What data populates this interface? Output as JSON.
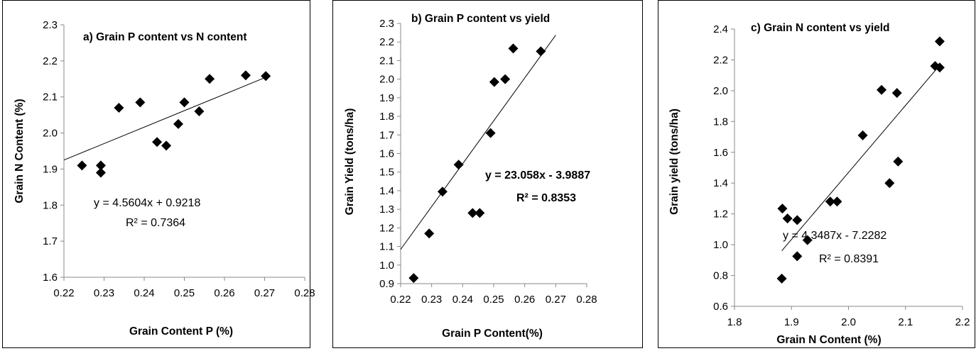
{
  "chart_data": [
    {
      "type": "scatter",
      "title": "a) Grain P content  vs N content",
      "xlabel": "Grain Content P (%)",
      "ylabel": "Grain N  Content (%)",
      "xlim": [
        0.22,
        0.28
      ],
      "ylim": [
        1.6,
        2.3
      ],
      "xticks": [
        "0.22",
        "0.23",
        "0.24",
        "0.25",
        "0.26",
        "0.27",
        "0.28"
      ],
      "yticks": [
        "1.6",
        "1.7",
        "1.8",
        "1.9",
        "2.0",
        "2.1",
        "2.2",
        "2.3"
      ],
      "points": [
        {
          "x": 0.2245,
          "y": 1.91
        },
        {
          "x": 0.2292,
          "y": 1.91
        },
        {
          "x": 0.2292,
          "y": 1.89
        },
        {
          "x": 0.2337,
          "y": 2.07
        },
        {
          "x": 0.239,
          "y": 2.085
        },
        {
          "x": 0.2432,
          "y": 1.975
        },
        {
          "x": 0.2455,
          "y": 1.965
        },
        {
          "x": 0.2485,
          "y": 2.025
        },
        {
          "x": 0.25,
          "y": 2.085
        },
        {
          "x": 0.2537,
          "y": 2.06
        },
        {
          "x": 0.2563,
          "y": 2.15
        },
        {
          "x": 0.2653,
          "y": 2.16
        },
        {
          "x": 0.2703,
          "y": 2.158
        }
      ],
      "trendline": {
        "slope": 4.5604,
        "intercept": 0.9218,
        "x_range": [
          0.22,
          0.27
        ]
      },
      "equation": "y = 4.5604x + 0.9218",
      "r2": "R² = 0.7364",
      "grid": false
    },
    {
      "type": "scatter",
      "title": "b) Grain  P content  vs yield",
      "xlabel": "Grain P Content(%)",
      "ylabel": "Grain Yield   (tons/ha)",
      "xlim": [
        0.22,
        0.28
      ],
      "ylim": [
        0.9,
        2.3
      ],
      "xticks": [
        "0.22",
        "0.23",
        "0.24",
        "0.25",
        "0.26",
        "0.27",
        "0.28"
      ],
      "yticks": [
        "0.9",
        "1.0",
        "1.1",
        "1.2",
        "1.3",
        "1.4",
        "1.5",
        "1.6",
        "1.7",
        "1.8",
        "1.9",
        "2.0",
        "2.1",
        "2.2",
        "2.3"
      ],
      "points": [
        {
          "x": 0.2242,
          "y": 0.93
        },
        {
          "x": 0.2292,
          "y": 1.17
        },
        {
          "x": 0.2335,
          "y": 1.395
        },
        {
          "x": 0.2387,
          "y": 1.54
        },
        {
          "x": 0.2432,
          "y": 1.28
        },
        {
          "x": 0.2455,
          "y": 1.28
        },
        {
          "x": 0.249,
          "y": 1.71
        },
        {
          "x": 0.2502,
          "y": 1.985
        },
        {
          "x": 0.2537,
          "y": 2.0
        },
        {
          "x": 0.2563,
          "y": 2.165
        },
        {
          "x": 0.2652,
          "y": 2.15
        }
      ],
      "trendline": {
        "slope": 23.058,
        "intercept": -3.9887,
        "x_range": [
          0.22,
          0.27
        ]
      },
      "equation": "y = 23.058x - 3.9887",
      "r2": "R² = 0.8353",
      "grid": false
    },
    {
      "type": "scatter",
      "title": "c) Grain N content  vs yield",
      "xlabel": "Grain N Content (%)",
      "ylabel": "Grain yield   (tons/ha)",
      "xlim": [
        1.8,
        2.2
      ],
      "ylim": [
        0.6,
        2.4
      ],
      "xticks": [
        "1.8",
        "1.9",
        "2.0",
        "2.1",
        "2.2"
      ],
      "yticks": [
        "0.6",
        "0.8",
        "1.0",
        "1.2",
        "1.4",
        "1.6",
        "1.8",
        "2.0",
        "2.2",
        "2.4"
      ],
      "points": [
        {
          "x": 1.884,
          "y": 1.235
        },
        {
          "x": 1.893,
          "y": 1.17
        },
        {
          "x": 1.91,
          "y": 1.16
        },
        {
          "x": 1.91,
          "y": 0.925
        },
        {
          "x": 1.928,
          "y": 1.03
        },
        {
          "x": 1.883,
          "y": 0.78
        },
        {
          "x": 1.968,
          "y": 1.28
        },
        {
          "x": 1.98,
          "y": 1.28
        },
        {
          "x": 2.025,
          "y": 1.71
        },
        {
          "x": 2.058,
          "y": 2.005
        },
        {
          "x": 2.072,
          "y": 1.4
        },
        {
          "x": 2.085,
          "y": 1.985
        },
        {
          "x": 2.087,
          "y": 1.54
        },
        {
          "x": 2.152,
          "y": 2.16
        },
        {
          "x": 2.16,
          "y": 2.15
        },
        {
          "x": 2.16,
          "y": 2.32
        }
      ],
      "trendline": {
        "slope": 4.3487,
        "intercept": -7.2282,
        "x_range": [
          1.883,
          2.16
        ]
      },
      "equation": "y = 4.3487x - 7.2282",
      "r2": "R² = 0.8391",
      "grid": false
    }
  ]
}
